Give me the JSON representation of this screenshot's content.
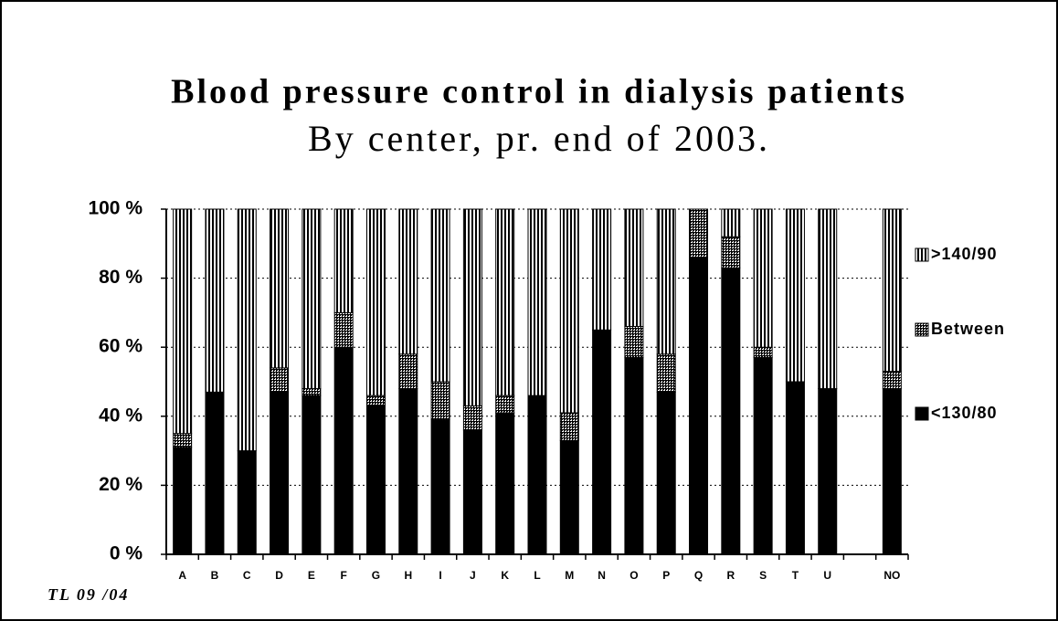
{
  "chart_data": {
    "type": "stacked-bar",
    "title": "Blood pressure control in dialysis patients",
    "subtitle": "By center, pr. end of 2003.",
    "footnote": "TL 09 /04",
    "categories": [
      "A",
      "B",
      "C",
      "D",
      "E",
      "F",
      "G",
      "H",
      "I",
      "J",
      "K",
      "L",
      "M",
      "N",
      "O",
      "P",
      "Q",
      "R",
      "S",
      "T",
      "U",
      null,
      "NO"
    ],
    "series": [
      {
        "name": "<130/80",
        "color": "#000000",
        "pattern": "solid",
        "values": [
          31,
          47,
          30,
          47,
          46,
          60,
          43,
          48,
          39,
          36,
          41,
          46,
          33,
          65,
          57,
          47,
          86,
          83,
          57,
          50,
          48,
          null,
          48
        ]
      },
      {
        "name": "Between",
        "color": "#000000",
        "pattern": "crosshatch",
        "values": [
          4,
          0,
          0,
          7,
          2,
          10,
          3,
          10,
          11,
          7,
          5,
          0,
          8,
          0,
          9,
          11,
          14,
          9,
          3,
          0,
          0,
          null,
          5
        ]
      },
      {
        "name": ">140/90",
        "color": "#000000",
        "pattern": "vertical-lines",
        "values": [
          65,
          53,
          70,
          46,
          52,
          30,
          54,
          42,
          50,
          57,
          54,
          54,
          59,
          35,
          34,
          42,
          0,
          8,
          40,
          50,
          52,
          null,
          47
        ]
      }
    ],
    "ylim": [
      0,
      100
    ],
    "yticks": [
      {
        "value": 0,
        "label": "0 %"
      },
      {
        "value": 20,
        "label": "20 %"
      },
      {
        "value": 40,
        "label": "40 %"
      },
      {
        "value": 60,
        "label": "60 %"
      },
      {
        "value": 80,
        "label": "80 %"
      },
      {
        "value": 100,
        "label": "100 %"
      }
    ],
    "grid": true,
    "legend": "right"
  }
}
